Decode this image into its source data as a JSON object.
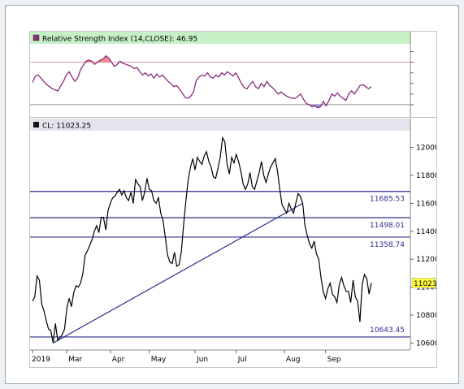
{
  "colors": {
    "frame_border": "#9aa6b2",
    "rsi_header_bg": "#c6f0c6",
    "price_header_bg": "#e4e4ee",
    "rsi_line": "#8b2c7c",
    "rsi_overbought_fill": "#e03a3a",
    "rsi_oversold_fill": "#5050d0",
    "rsi_band_line": "#d8a0a0",
    "price_line": "#000000",
    "level_line": "#2b2d8c",
    "trendline": "#2b2d8c",
    "level_label": "#2b2d8c",
    "last_price_badge": "#ffff40"
  },
  "rsi_panel": {
    "title": "Relative Strength Index (14,CLOSE): 46.95",
    "icon": "color-swatch-icon"
  },
  "price_panel": {
    "title": "CL: 11023.25",
    "icon": "color-swatch-icon"
  },
  "chart_data": [
    {
      "type": "line",
      "panel": "rsi",
      "title": "Relative Strength Index (14,CLOSE): 46.95",
      "overbought": 70,
      "oversold": 30,
      "ylim": [
        20,
        85
      ],
      "grid": false,
      "series": [
        {
          "values": [
            51,
            57,
            58,
            55,
            52,
            49,
            47,
            45,
            44,
            43,
            48,
            52,
            58,
            61,
            56,
            52,
            55,
            63,
            67,
            71,
            72,
            71,
            68,
            70,
            72,
            73,
            76,
            74,
            70,
            66,
            68,
            71,
            69,
            68,
            67,
            66,
            64,
            65,
            61,
            58,
            60,
            57,
            59,
            55,
            59,
            56,
            58,
            55,
            52,
            50,
            47,
            48,
            45,
            41,
            37,
            36,
            38,
            42,
            53,
            56,
            58,
            57,
            60,
            56,
            55,
            58,
            56,
            60,
            58,
            61,
            59,
            57,
            60,
            55,
            50,
            46,
            45,
            49,
            52,
            47,
            45,
            50,
            47,
            52,
            48,
            46,
            43,
            40,
            42,
            40,
            38,
            37,
            36,
            36,
            38,
            40,
            35,
            31,
            30,
            28,
            29,
            27,
            28,
            33,
            29,
            34,
            40,
            38,
            41,
            38,
            36,
            34,
            40,
            43,
            40,
            44,
            48,
            49,
            47,
            45,
            47
          ]
        }
      ]
    },
    {
      "type": "line",
      "panel": "price",
      "title": "CL: 11023.25",
      "x_tick_labels": [
        "2019",
        "Mar",
        "Apr",
        "May",
        "Jun",
        "Jul",
        "Aug",
        "Sep"
      ],
      "x_tick_index": [
        0,
        15,
        34,
        51,
        71,
        89,
        110,
        128
      ],
      "y_tick_labels": [
        "10600",
        "10800",
        "11000",
        "11200",
        "11400",
        "11600",
        "11800",
        "12000"
      ],
      "ylim": [
        10550,
        12120
      ],
      "grid": false,
      "series": [
        {
          "name": "CL",
          "values": [
            10900,
            10930,
            11080,
            11050,
            10880,
            10830,
            10760,
            10700,
            10690,
            10600,
            10740,
            10620,
            10640,
            10660,
            10700,
            10850,
            10920,
            10860,
            10960,
            11010,
            11000,
            11030,
            11100,
            11230,
            11260,
            11300,
            11340,
            11400,
            11440,
            11390,
            11500,
            11500,
            11410,
            11550,
            11600,
            11640,
            11650,
            11680,
            11700,
            11660,
            11690,
            11640,
            11620,
            11680,
            11600,
            11770,
            11740,
            11720,
            11620,
            11680,
            11780,
            11700,
            11690,
            11620,
            11600,
            11640,
            11530,
            11480,
            11360,
            11230,
            11180,
            11170,
            11250,
            11150,
            11160,
            11250,
            11450,
            11620,
            11770,
            11860,
            11920,
            11840,
            11930,
            11900,
            11880,
            11940,
            11970,
            11900,
            11860,
            11790,
            11780,
            11850,
            11930,
            12070,
            12040,
            11880,
            11810,
            11930,
            11890,
            11950,
            11900,
            11830,
            11740,
            11700,
            11740,
            11820,
            11720,
            11700,
            11760,
            11820,
            11900,
            11800,
            11750,
            11810,
            11860,
            11890,
            11920,
            11830,
            11700,
            11590,
            11560,
            11530,
            11600,
            11560,
            11530,
            11600,
            11670,
            11650,
            11600,
            11440,
            11370,
            11310,
            11280,
            11330,
            11240,
            11200,
            11070,
            10970,
            10920,
            10990,
            11030,
            10950,
            10930,
            10890,
            11020,
            11070,
            11010,
            10970,
            10970,
            10890,
            11050,
            10930,
            10900,
            10750,
            11020,
            11090,
            11060,
            10950,
            11030
          ]
        }
      ],
      "horizontal_levels": [
        {
          "value": 11685.53,
          "label": "11685.53"
        },
        {
          "value": 11498.01,
          "label": "11498.01"
        },
        {
          "value": 11358.74,
          "label": "11358.74"
        },
        {
          "value": 10643.45,
          "label": "10643.45"
        }
      ],
      "trendline": {
        "x1_index": 9,
        "y1": 10600,
        "x2_index": 118,
        "y2": 11600
      },
      "last_value_label": "11023"
    }
  ]
}
